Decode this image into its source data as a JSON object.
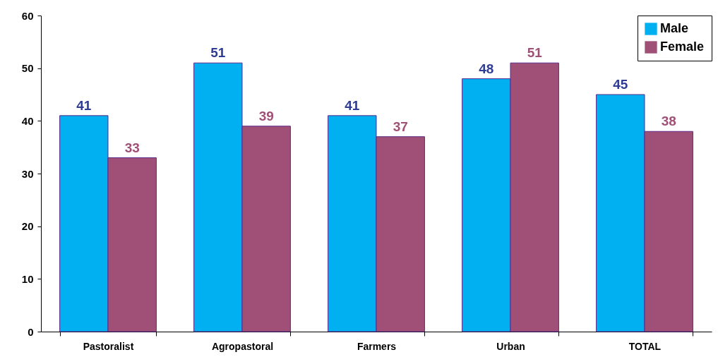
{
  "chart_data": {
    "type": "bar",
    "categories": [
      "Pastoralist",
      "Agropastoral",
      "Farmers",
      "Urban",
      "TOTAL"
    ],
    "series": [
      {
        "name": "Male",
        "color": "#00b0f0",
        "values": [
          41,
          51,
          41,
          48,
          45
        ]
      },
      {
        "name": "Female",
        "color": "#a05076",
        "values": [
          33,
          39,
          37,
          51,
          38
        ]
      }
    ],
    "ylim": [
      0,
      60
    ],
    "yticks": [
      0,
      10,
      20,
      30,
      40,
      50,
      60
    ],
    "grid": false,
    "legend": "top right",
    "data_labels": true
  }
}
